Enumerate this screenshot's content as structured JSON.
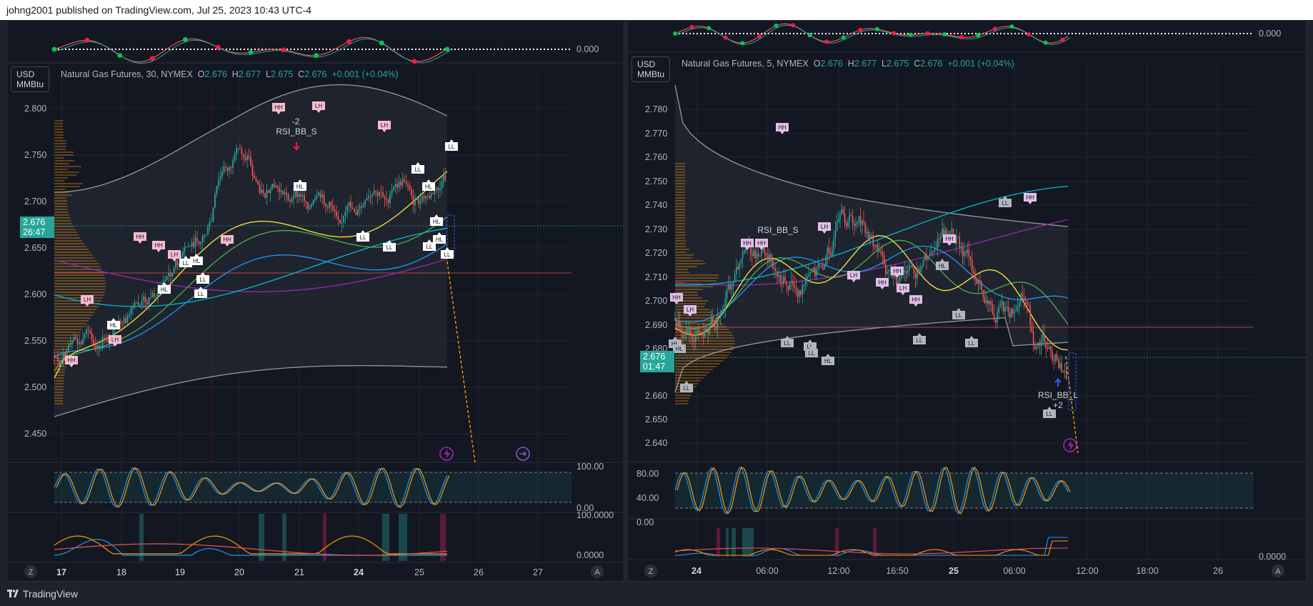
{
  "header": {
    "publish_text": "johng2001 published on TradingView.com, Jul 25, 2023 10:43 UTC-4"
  },
  "footer": {
    "brand": "TradingView"
  },
  "colors": {
    "bull": "#26a69a",
    "bear": "#ef5350",
    "background": "#131722",
    "frame": "#1e222d",
    "accent_purple": "#9c27b0"
  },
  "left": {
    "unit_line1": "USD",
    "unit_line2": "MMBtu",
    "symbol": "Natural Gas Futures, 30, NYMEX",
    "o_label": "O",
    "o_value": "2.676",
    "h_label": "H",
    "h_value": "2.677",
    "l_label": "L",
    "l_value": "2.675",
    "c_label": "C",
    "c_value": "2.676",
    "change": "+0.001 (+0.04%)",
    "price_tag_price": "2.676",
    "price_tag_time": "26:47",
    "y_ticks": [
      "2.800",
      "2.750",
      "2.700",
      "2.650",
      "2.600",
      "2.550",
      "2.500",
      "2.450"
    ],
    "x_ticks": [
      "17",
      "18",
      "19",
      "20",
      "21",
      "24",
      "25",
      "26",
      "27"
    ],
    "top_osc_zero": "0.000",
    "stoch_top": "100.00",
    "stoch_bottom": "0.00",
    "dmi_top": "100.0000",
    "dmi_bottom": "0.0000",
    "signal_text_1": "-2",
    "signal_text_2": "RSI_BB_S",
    "z_button": "Z",
    "a_button": "A",
    "pivots": [
      {
        "t": "HH",
        "kind": "high"
      },
      {
        "t": "LH",
        "kind": "high"
      },
      {
        "t": "HL",
        "kind": "low"
      },
      {
        "t": "LH",
        "kind": "high"
      },
      {
        "t": "LL",
        "kind": "low"
      },
      {
        "t": "LL",
        "kind": "low"
      },
      {
        "t": "HH",
        "kind": "high"
      },
      {
        "t": "LH",
        "kind": "high"
      },
      {
        "t": "LL",
        "kind": "low"
      },
      {
        "t": "HH",
        "kind": "high"
      },
      {
        "t": "HH",
        "kind": "high"
      },
      {
        "t": "LH",
        "kind": "high"
      },
      {
        "t": "LH",
        "kind": "high"
      },
      {
        "t": "HH",
        "kind": "high"
      },
      {
        "t": "HL",
        "kind": "low"
      },
      {
        "t": "HL",
        "kind": "low"
      },
      {
        "t": "LL",
        "kind": "low"
      },
      {
        "t": "LL",
        "kind": "low"
      },
      {
        "t": "HL",
        "kind": "low"
      },
      {
        "t": "HL",
        "kind": "low"
      },
      {
        "t": "LL",
        "kind": "low"
      },
      {
        "t": "HL",
        "kind": "low"
      },
      {
        "t": "LL",
        "kind": "low"
      },
      {
        "t": "HL",
        "kind": "low"
      },
      {
        "t": "LL",
        "kind": "low"
      },
      {
        "t": "LL",
        "kind": "low"
      }
    ]
  },
  "right": {
    "unit_line1": "USD",
    "unit_line2": "MMBtu",
    "symbol": "Natural Gas Futures, 5, NYMEX",
    "o_label": "O",
    "o_value": "2.676",
    "h_label": "H",
    "h_value": "2.677",
    "l_label": "L",
    "l_value": "2.675",
    "c_label": "C",
    "c_value": "2.676",
    "change": "+0.001 (+0.04%)",
    "price_tag_price": "2.676",
    "price_tag_time": "01:47",
    "y_ticks": [
      "2.780",
      "2.770",
      "2.760",
      "2.750",
      "2.740",
      "2.730",
      "2.720",
      "2.710",
      "2.700",
      "2.690",
      "2.680",
      "2.660",
      "2.650",
      "2.640"
    ],
    "x_ticks": [
      "24",
      "06:00",
      "12:00",
      "16:50",
      "25",
      "06:00",
      "12:00",
      "18:00",
      "26"
    ],
    "top_osc_zero": "0.000",
    "stoch_ticks": [
      "80.00",
      "40.00",
      "0.00"
    ],
    "dmi_bottom": "0.0000",
    "signal_text_1": "RSI_BB_S",
    "signal_text_2": "RSI_BB_L",
    "signal_text_3": "+2",
    "z_button": "Z",
    "a_button": "A",
    "pivots": [
      {
        "t": "HH",
        "kind": "high"
      },
      {
        "t": "HH",
        "kind": "high"
      },
      {
        "t": "HL",
        "kind": "low"
      },
      {
        "t": "HL",
        "kind": "low"
      },
      {
        "t": "LH",
        "kind": "high"
      },
      {
        "t": "HH",
        "kind": "high"
      },
      {
        "t": "HH",
        "kind": "high"
      },
      {
        "t": "LL",
        "kind": "low"
      },
      {
        "t": "LL",
        "kind": "low"
      },
      {
        "t": "LH",
        "kind": "high"
      },
      {
        "t": "LL",
        "kind": "low"
      },
      {
        "t": "LL",
        "kind": "low"
      },
      {
        "t": "LH",
        "kind": "high"
      },
      {
        "t": "HL",
        "kind": "low"
      },
      {
        "t": "HH",
        "kind": "high"
      },
      {
        "t": "LH",
        "kind": "high"
      },
      {
        "t": "HH",
        "kind": "high"
      },
      {
        "t": "HH",
        "kind": "high"
      },
      {
        "t": "LL",
        "kind": "low"
      },
      {
        "t": "HL",
        "kind": "low"
      },
      {
        "t": "HH",
        "kind": "high"
      },
      {
        "t": "LL",
        "kind": "low"
      },
      {
        "t": "LL",
        "kind": "low"
      },
      {
        "t": "HH",
        "kind": "high"
      },
      {
        "t": "LL",
        "kind": "low"
      },
      {
        "t": "LL",
        "kind": "low"
      }
    ]
  }
}
